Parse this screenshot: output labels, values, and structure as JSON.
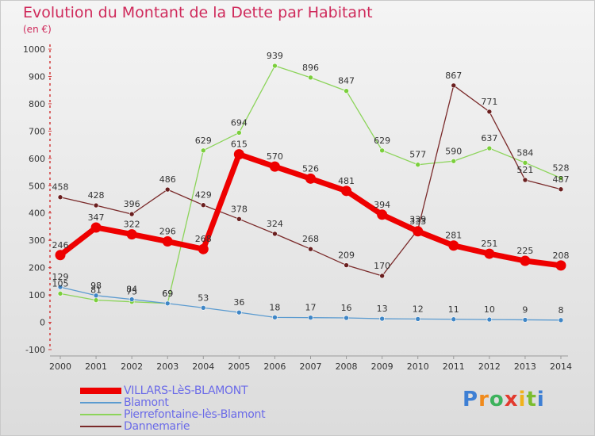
{
  "chart_data": {
    "type": "line",
    "title": "Evolution du Montant de la Dette par Habitant",
    "subtitle": "(en €)",
    "x": [
      "2000",
      "2001",
      "2002",
      "2003",
      "2004",
      "2005",
      "2006",
      "2007",
      "2008",
      "2009",
      "2010",
      "2011",
      "2012",
      "2013",
      "2014"
    ],
    "ylim": [
      -100,
      1000
    ],
    "yticks": [
      -100,
      0,
      100,
      200,
      300,
      400,
      500,
      600,
      700,
      800,
      900,
      1000
    ],
    "grid": false,
    "legend_position": "bottom-left",
    "series": [
      {
        "name": "VILLARS-LèS-BLAMONT",
        "color": "#ee0000",
        "values": [
          246,
          347,
          322,
          296,
          268,
          615,
          570,
          526,
          481,
          394,
          333,
          281,
          251,
          225,
          208
        ]
      },
      {
        "name": "Blamont",
        "color": "#5b9bd0",
        "values": [
          129,
          98,
          84,
          69,
          53,
          36,
          18,
          17,
          16,
          13,
          12,
          11,
          10,
          9,
          8
        ]
      },
      {
        "name": "Pierrefontaine-lès-Blamont",
        "color": "#8cd45a",
        "values": [
          105,
          81,
          75,
          69,
          629,
          694,
          939,
          896,
          847,
          629,
          577,
          590,
          637,
          584,
          528
        ]
      },
      {
        "name": "Dannemarie",
        "color": "#7a2a2a",
        "values": [
          458,
          428,
          396,
          486,
          429,
          378,
          324,
          268,
          209,
          170,
          339,
          867,
          771,
          521,
          487
        ]
      }
    ]
  },
  "brand": {
    "logo_text": "Proxiti",
    "logo_letters": [
      "P",
      "r",
      "o",
      "x",
      "i",
      "t",
      "i"
    ]
  }
}
